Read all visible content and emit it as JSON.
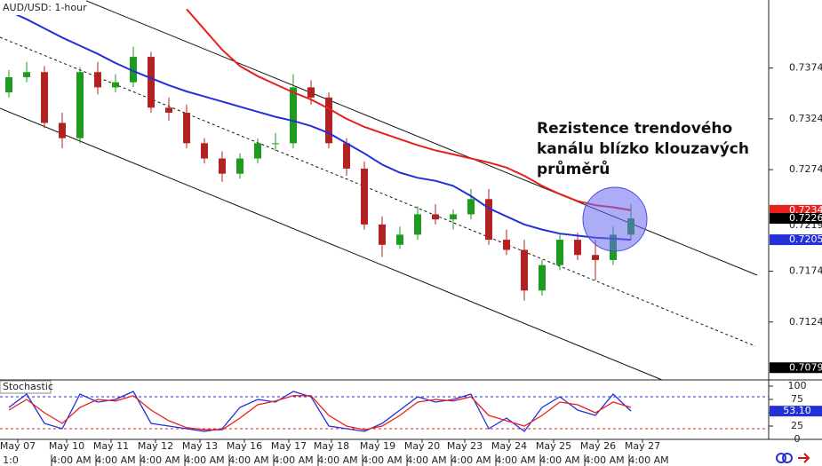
{
  "title": "AUD/USD: 1-hour",
  "annotation": [
    "Rezistence trendového",
    "kanálu blízko klouzavých",
    "průměrů"
  ],
  "chart_data": [
    {
      "type": "candlestick",
      "ylim": [
        0.7067,
        0.7441
      ],
      "yticks": [
        0.7124,
        0.7174,
        0.7274,
        0.7324,
        0.7374
      ],
      "xlim": [
        -0.5,
        42.75
      ],
      "xticks": [
        {
          "value": 0.5,
          "label": "May 07"
        },
        {
          "value": 3.25,
          "label": "May 10"
        },
        {
          "value": 5.75,
          "label": "May 11"
        },
        {
          "value": 8.25,
          "label": "May 12"
        },
        {
          "value": 10.75,
          "label": "May 13"
        },
        {
          "value": 13.25,
          "label": "May 16"
        },
        {
          "value": 15.75,
          "label": "May 17"
        },
        {
          "value": 18.15,
          "label": "May 18"
        },
        {
          "value": 20.75,
          "label": "May 19"
        },
        {
          "value": 23.25,
          "label": "May 20"
        },
        {
          "value": 25.65,
          "label": "May 23"
        },
        {
          "value": 28.15,
          "label": "May 24"
        },
        {
          "value": 30.65,
          "label": "May 25"
        },
        {
          "value": 33.15,
          "label": "May 26"
        },
        {
          "value": 35.65,
          "label": "May 27"
        }
      ],
      "xticks2": [
        {
          "value": 0.1,
          "label": "1:0"
        },
        {
          "value": 3.5,
          "label": "4:00 AM"
        },
        {
          "value": 6,
          "label": "4:00 AM"
        },
        {
          "value": 8.5,
          "label": "4:00 AM"
        },
        {
          "value": 11,
          "label": "4:00 AM"
        },
        {
          "value": 13.5,
          "label": "4:00 AM"
        },
        {
          "value": 16,
          "label": "4:00 AM"
        },
        {
          "value": 18.5,
          "label": "4:00 AM"
        },
        {
          "value": 21,
          "label": "4:00 AM"
        },
        {
          "value": 23.5,
          "label": "4:00 AM"
        },
        {
          "value": 26,
          "label": "4:00 AM"
        },
        {
          "value": 28.5,
          "label": "4:00 AM"
        },
        {
          "value": 31,
          "label": "4:00 AM"
        },
        {
          "value": 33.5,
          "label": "4:00 AM"
        },
        {
          "value": 36,
          "label": "4:00 AM"
        }
      ],
      "up_color": "#1e9a1e",
      "down_color": "#b22222",
      "open": [
        0.735,
        0.7365,
        0.737,
        0.732,
        0.7305,
        0.737,
        0.7355,
        0.736,
        0.7385,
        0.7335,
        0.733,
        0.73,
        0.7285,
        0.727,
        0.7285,
        0.73,
        0.73,
        0.7355,
        0.7345,
        0.73,
        0.7275,
        0.722,
        0.72,
        0.721,
        0.723,
        0.7225,
        0.723,
        0.7245,
        0.7205,
        0.7195,
        0.7155,
        0.718,
        0.7205,
        0.719,
        0.7185,
        0.721
      ],
      "high": [
        0.7372,
        0.738,
        0.7376,
        0.733,
        0.7375,
        0.738,
        0.7368,
        0.7395,
        0.739,
        0.7345,
        0.7338,
        0.7305,
        0.7292,
        0.729,
        0.7305,
        0.731,
        0.7368,
        0.7362,
        0.735,
        0.7305,
        0.7282,
        0.7228,
        0.7218,
        0.7238,
        0.724,
        0.7235,
        0.7255,
        0.7255,
        0.7215,
        0.7205,
        0.7185,
        0.721,
        0.7212,
        0.7205,
        0.7218,
        0.724
      ],
      "low": [
        0.7345,
        0.736,
        0.7315,
        0.7295,
        0.73,
        0.7348,
        0.735,
        0.7355,
        0.733,
        0.7322,
        0.7295,
        0.728,
        0.7262,
        0.7265,
        0.728,
        0.7292,
        0.7295,
        0.7338,
        0.7295,
        0.7268,
        0.7215,
        0.7188,
        0.7196,
        0.7205,
        0.722,
        0.7215,
        0.7225,
        0.72,
        0.719,
        0.7145,
        0.715,
        0.7175,
        0.7185,
        0.7165,
        0.718,
        0.7205
      ],
      "close": [
        0.7365,
        0.737,
        0.732,
        0.7305,
        0.737,
        0.7355,
        0.736,
        0.7385,
        0.7335,
        0.733,
        0.73,
        0.7285,
        0.727,
        0.7285,
        0.73,
        0.73,
        0.7355,
        0.7345,
        0.73,
        0.7275,
        0.722,
        0.72,
        0.721,
        0.723,
        0.7225,
        0.723,
        0.7245,
        0.7205,
        0.7195,
        0.7155,
        0.718,
        0.7205,
        0.719,
        0.7185,
        0.721,
        0.7226
      ],
      "series": [
        {
          "color": "#e8201c",
          "values": [
            null,
            null,
            null,
            null,
            null,
            null,
            null,
            null,
            null,
            null,
            0.7432,
            0.7412,
            0.7392,
            0.7376,
            0.7366,
            0.7358,
            0.735,
            0.7343,
            0.7334,
            0.7324,
            0.7316,
            0.731,
            0.7304,
            0.7298,
            0.7293,
            0.7289,
            0.7285,
            0.7281,
            0.7276,
            0.7268,
            0.7258,
            0.725,
            0.7243,
            0.7239,
            0.7237,
            0.7234
          ]
        },
        {
          "color": "#2230d8",
          "values": [
            0.743,
            0.7422,
            0.7413,
            0.7404,
            0.7396,
            0.7388,
            0.7379,
            0.7371,
            0.7364,
            0.7357,
            0.7351,
            0.7346,
            0.7341,
            0.7336,
            0.7331,
            0.7326,
            0.7322,
            0.7317,
            0.731,
            0.73,
            0.729,
            0.7279,
            0.7271,
            0.7266,
            0.7263,
            0.7258,
            0.7248,
            0.7236,
            0.7228,
            0.722,
            0.7215,
            0.7211,
            0.7209,
            0.7207,
            0.7206,
            0.7205
          ]
        }
      ],
      "price_labels": [
        {
          "value": 0.7234,
          "color": "#e8201c"
        },
        {
          "value": 0.7219,
          "color": "#ffffff"
        },
        {
          "value": 0.7226,
          "color": "#000000"
        },
        {
          "value": 0.7205,
          "color": "#2230d8"
        },
        {
          "value": 0.7079,
          "color": "#000000"
        }
      ]
    },
    {
      "type": "oscillator",
      "title": "Stochastic",
      "ylim": [
        0,
        100
      ],
      "yticks": [
        0,
        25,
        50,
        75,
        100
      ],
      "levels": [
        {
          "value": 80,
          "color": "#2230d8"
        },
        {
          "value": 20,
          "color": "#e8201c"
        }
      ],
      "series": [
        {
          "color": "#2230d8",
          "values": [
            60,
            85,
            30,
            20,
            85,
            70,
            75,
            90,
            30,
            25,
            20,
            15,
            20,
            60,
            75,
            70,
            90,
            80,
            25,
            20,
            15,
            30,
            55,
            80,
            70,
            75,
            85,
            20,
            40,
            15,
            60,
            80,
            55,
            45,
            85,
            53.1
          ]
        },
        {
          "color": "#e8201c",
          "values": [
            55,
            75,
            50,
            30,
            60,
            75,
            72,
            82,
            55,
            35,
            22,
            18,
            18,
            40,
            65,
            72,
            82,
            82,
            45,
            25,
            18,
            25,
            45,
            70,
            75,
            72,
            80,
            45,
            35,
            25,
            45,
            70,
            65,
            50,
            70,
            60
          ]
        }
      ],
      "current": {
        "value": 53.1,
        "label": "53.10",
        "color": "#2230d8"
      }
    }
  ]
}
